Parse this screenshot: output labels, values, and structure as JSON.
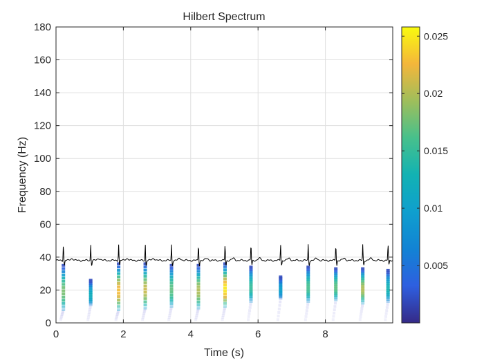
{
  "chart_data": {
    "type": "scatter",
    "title": "Hilbert Spectrum",
    "xlabel": "Time (s)",
    "ylabel": "Frequency (Hz)",
    "xlim": [
      0,
      10
    ],
    "ylim": [
      0,
      180
    ],
    "x_ticks": [
      "0",
      "2",
      "4",
      "6",
      "8"
    ],
    "x_tick_values": [
      0,
      2,
      4,
      6,
      8
    ],
    "y_ticks": [
      "0",
      "20",
      "40",
      "60",
      "80",
      "100",
      "120",
      "140",
      "160",
      "180"
    ],
    "y_tick_values": [
      0,
      20,
      40,
      60,
      80,
      100,
      120,
      140,
      160,
      180
    ],
    "grid": true,
    "colorbar": {
      "colormap": "parula",
      "range": [
        0,
        0.0258
      ],
      "ticks": [
        "0.005",
        "0.01",
        "0.015",
        "0.02",
        "0.025"
      ],
      "tick_values": [
        0.005,
        0.01,
        0.015,
        0.02,
        0.025
      ]
    },
    "ecg_overlay": {
      "color": "#000000",
      "baseline_hz": 38,
      "beat_times": [
        0.22,
        1.03,
        1.86,
        2.65,
        3.43,
        4.23,
        5.02,
        5.79,
        6.67,
        7.49,
        8.31,
        9.11,
        9.86
      ]
    },
    "ridges": [
      {
        "t": 0.22,
        "f_range": [
          8,
          35
        ],
        "peak_amplitude": 0.018
      },
      {
        "t": 1.03,
        "f_range": [
          11,
          26
        ],
        "peak_amplitude": 0.012
      },
      {
        "t": 1.86,
        "f_range": [
          8,
          36
        ],
        "peak_amplitude": 0.023
      },
      {
        "t": 2.65,
        "f_range": [
          9,
          36
        ],
        "peak_amplitude": 0.021
      },
      {
        "t": 3.43,
        "f_range": [
          10,
          35
        ],
        "peak_amplitude": 0.017
      },
      {
        "t": 4.23,
        "f_range": [
          9,
          35
        ],
        "peak_amplitude": 0.02
      },
      {
        "t": 5.02,
        "f_range": [
          10,
          36
        ],
        "peak_amplitude": 0.025
      },
      {
        "t": 5.79,
        "f_range": [
          13,
          34
        ],
        "peak_amplitude": 0.015
      },
      {
        "t": 6.67,
        "f_range": [
          15,
          28
        ],
        "peak_amplitude": 0.01
      },
      {
        "t": 7.49,
        "f_range": [
          13,
          34
        ],
        "peak_amplitude": 0.016
      },
      {
        "t": 8.31,
        "f_range": [
          14,
          33
        ],
        "peak_amplitude": 0.017
      },
      {
        "t": 9.11,
        "f_range": [
          12,
          33
        ],
        "peak_amplitude": 0.02
      },
      {
        "t": 9.86,
        "f_range": [
          13,
          32
        ],
        "peak_amplitude": 0.013
      }
    ]
  }
}
